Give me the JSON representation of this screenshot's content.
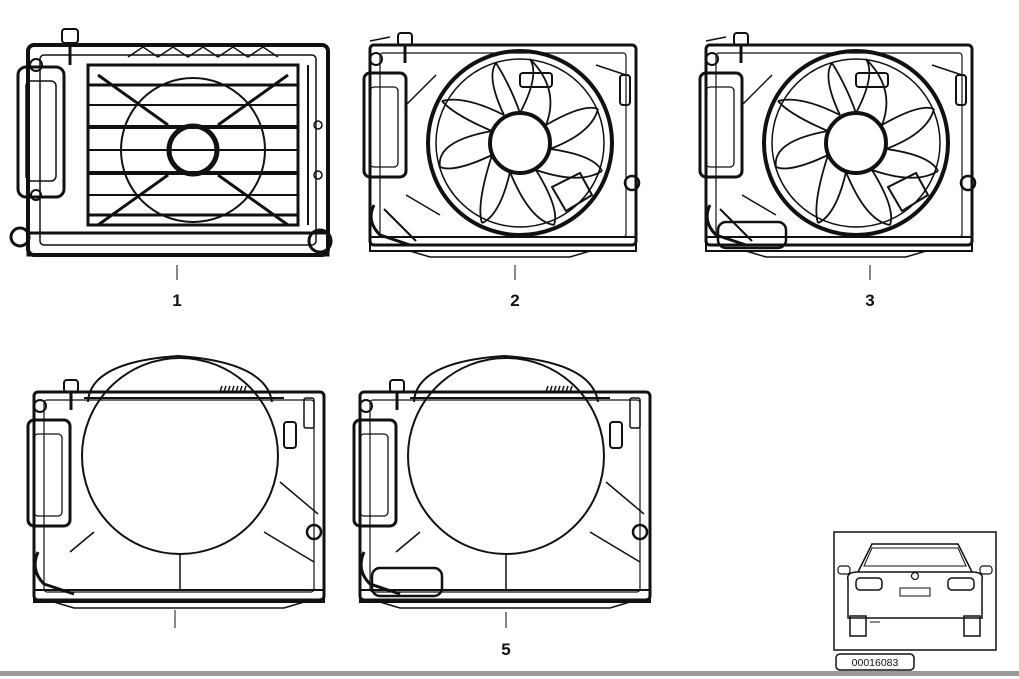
{
  "callouts": {
    "c1": "1",
    "c2": "2",
    "c3": "3",
    "c5": "5"
  },
  "reference_number": "00016083",
  "colors": {
    "line": "#111111",
    "background": "#ffffff",
    "rule": "#999999"
  }
}
